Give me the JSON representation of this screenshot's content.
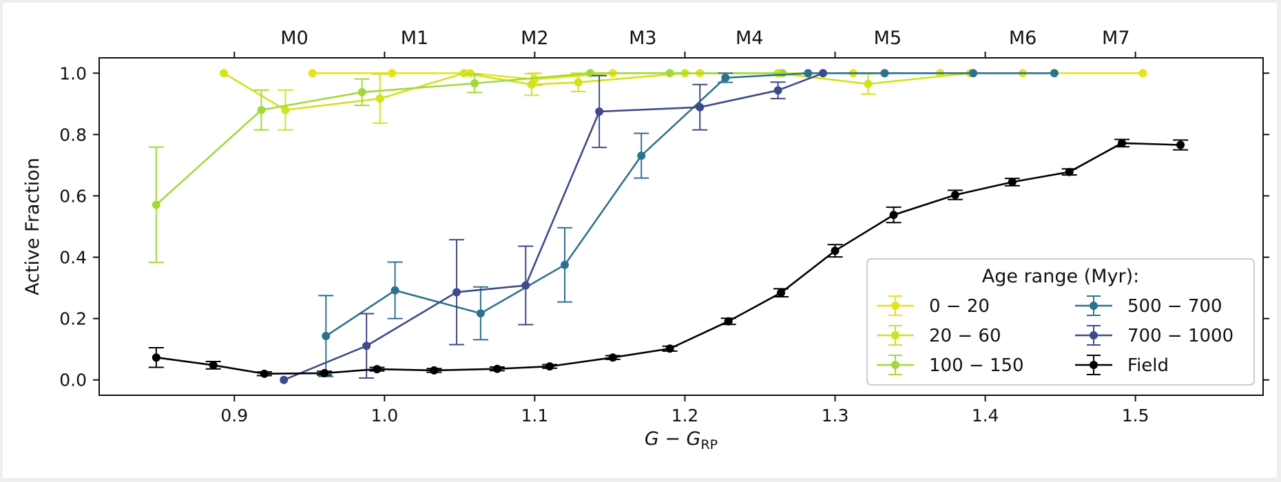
{
  "chart_data": {
    "type": "line",
    "title": "",
    "xlabel_main": "G − G",
    "xlabel_sub": "RP",
    "ylabel": "Active Fraction",
    "xlim": [
      0.81,
      1.585
    ],
    "ylim": [
      -0.05,
      1.05
    ],
    "xticks": [
      "0.9",
      "1.0",
      "1.1",
      "1.2",
      "1.3",
      "1.4",
      "1.5"
    ],
    "yticks": [
      "0.0",
      "0.2",
      "0.4",
      "0.6",
      "0.8",
      "1.0"
    ],
    "spectral_types": [
      {
        "label": "M0",
        "x": 0.94
      },
      {
        "label": "M1",
        "x": 1.02
      },
      {
        "label": "M2",
        "x": 1.1
      },
      {
        "label": "M3",
        "x": 1.172
      },
      {
        "label": "M4",
        "x": 1.243
      },
      {
        "label": "M5",
        "x": 1.335
      },
      {
        "label": "M6",
        "x": 1.425
      },
      {
        "label": "M7",
        "x": 1.487
      }
    ],
    "legend": {
      "title": "Age range (Myr):",
      "placement": "lower-right"
    },
    "series": [
      {
        "name": "0 − 20",
        "color": "#e6e317",
        "x": [
          0.952,
          1.005,
          1.057,
          1.1,
          1.152,
          1.21,
          1.262,
          1.312,
          1.37,
          1.425,
          1.505
        ],
        "y": [
          1.0,
          1.0,
          1.0,
          0.98,
          1.0,
          1.0,
          1.0,
          1.0,
          1.0,
          1.0,
          1.0
        ],
        "err": [
          0,
          0,
          0,
          0.02,
          0,
          0,
          0,
          0,
          0,
          0,
          0
        ]
      },
      {
        "name": "20 − 60",
        "color": "#d2e21b",
        "x": [
          0.893,
          0.934,
          0.997,
          1.053,
          1.098,
          1.129,
          1.2,
          1.262,
          1.322,
          1.39
        ],
        "y": [
          1.0,
          0.88,
          0.917,
          1.0,
          0.963,
          0.97,
          1.0,
          1.0,
          0.965,
          1.0
        ],
        "err": [
          0,
          0.065,
          0.08,
          0,
          0.035,
          0.03,
          0,
          0,
          0.033,
          0
        ]
      },
      {
        "name": "100 − 150",
        "color": "#a0da39",
        "x": [
          0.848,
          0.918,
          0.985,
          1.06,
          1.137,
          1.19,
          1.265
        ],
        "y": [
          0.571,
          0.88,
          0.938,
          0.967,
          1.0,
          1.0,
          1.0
        ],
        "err": [
          0.188,
          0.065,
          0.043,
          0.03,
          0,
          0,
          0
        ]
      },
      {
        "name": "500 − 700",
        "color": "#2c728e",
        "x": [
          0.961,
          1.007,
          1.064,
          1.12,
          1.171,
          1.227,
          1.282,
          1.333,
          1.392,
          1.446
        ],
        "y": [
          0.143,
          0.292,
          0.217,
          0.375,
          0.731,
          0.985,
          1.0,
          1.0,
          1.0,
          1.0
        ],
        "err": [
          0.132,
          0.092,
          0.086,
          0.121,
          0.073,
          0.015,
          0,
          0,
          0,
          0
        ]
      },
      {
        "name": "700 − 1000",
        "color": "#3e4a89",
        "x": [
          0.933,
          0.988,
          1.048,
          1.094,
          1.143,
          1.21,
          1.262,
          1.292
        ],
        "y": [
          0.0,
          0.111,
          0.286,
          0.308,
          0.875,
          0.889,
          0.944,
          1.0
        ],
        "err": [
          0,
          0.105,
          0.171,
          0.128,
          0.117,
          0.074,
          0.027,
          0
        ]
      },
      {
        "name": "Field",
        "color": "#000000",
        "x": [
          0.848,
          0.886,
          0.92,
          0.96,
          0.995,
          1.033,
          1.075,
          1.11,
          1.152,
          1.19,
          1.229,
          1.264,
          1.3,
          1.339,
          1.38,
          1.418,
          1.456,
          1.491,
          1.53
        ],
        "y": [
          0.073,
          0.048,
          0.02,
          0.022,
          0.035,
          0.031,
          0.036,
          0.044,
          0.073,
          0.102,
          0.191,
          0.284,
          0.421,
          0.538,
          0.603,
          0.645,
          0.678,
          0.772,
          0.766
        ],
        "err": [
          0.032,
          0.012,
          0.006,
          0.006,
          0.006,
          0.006,
          0.006,
          0.006,
          0.006,
          0.008,
          0.01,
          0.013,
          0.02,
          0.025,
          0.015,
          0.012,
          0.01,
          0.012,
          0.016
        ]
      }
    ]
  }
}
